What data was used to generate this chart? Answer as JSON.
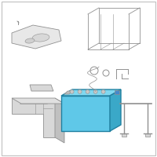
{
  "bg_color": "#ffffff",
  "border_color": "#c0c0c0",
  "battery_color": "#5fc8e8",
  "battery_top_color": "#80d8f0",
  "battery_side_color": "#3aa8c8",
  "battery_outline": "#2080a0",
  "parts_color": "#d8d8d8",
  "parts_outline": "#909090",
  "fig_width": 2.0,
  "fig_height": 2.0,
  "dpi": 100
}
